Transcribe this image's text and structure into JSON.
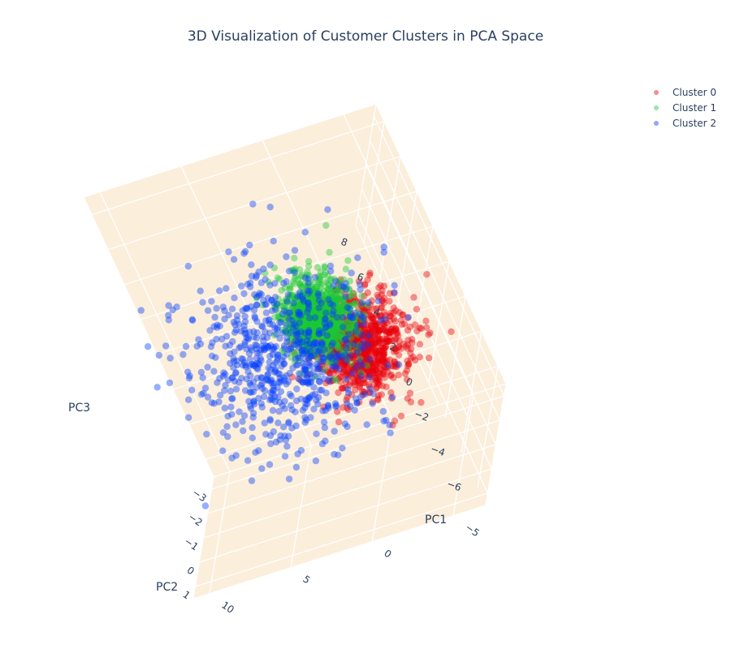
{
  "chart_data": {
    "type": "scatter",
    "title": "3D Visualization of Customer Clusters in PCA Space",
    "axes": {
      "x": {
        "label": "PC1",
        "range": [
          -7,
          11
        ],
        "ticks": [
          -5,
          0,
          5,
          10
        ],
        "tick_labels": [
          "−5",
          "0",
          "5",
          "10"
        ]
      },
      "y": {
        "label": "PC2",
        "range": [
          -3.5,
          1.5
        ],
        "ticks": [
          -3,
          -2,
          -1,
          0,
          1
        ],
        "tick_labels": [
          "−3",
          "−2",
          "−1",
          "0",
          "1"
        ]
      },
      "z": {
        "label": "PC3",
        "range": [
          -7,
          9
        ],
        "ticks": [
          -6,
          -4,
          -2,
          0,
          2,
          4,
          6,
          8
        ],
        "tick_labels": [
          "−6",
          "−4",
          "−2",
          "0",
          "2",
          "4",
          "6",
          "8"
        ]
      }
    },
    "scene_background": "#fbeedb",
    "gridlines": true,
    "legend_position": "top-right",
    "series": [
      {
        "name": "Cluster 0",
        "color": "#e8000b",
        "count": 900,
        "center": {
          "x": -3.2,
          "y": 0.2,
          "z": 1.4
        },
        "spread": {
          "x": 1.4,
          "y": 0.45,
          "z": 1.2
        }
      },
      {
        "name": "Cluster 1",
        "color": "#1ac938",
        "count": 900,
        "center": {
          "x": -1.5,
          "y": 0.1,
          "z": 3.4
        },
        "spread": {
          "x": 1.0,
          "y": 0.4,
          "z": 1.0
        }
      },
      {
        "name": "Cluster 2",
        "color": "#023eff",
        "count": 700,
        "center": {
          "x": 1.8,
          "y": -0.6,
          "z": 1.2
        },
        "spread": {
          "x": 2.6,
          "y": 0.85,
          "z": 2.2
        }
      }
    ]
  }
}
